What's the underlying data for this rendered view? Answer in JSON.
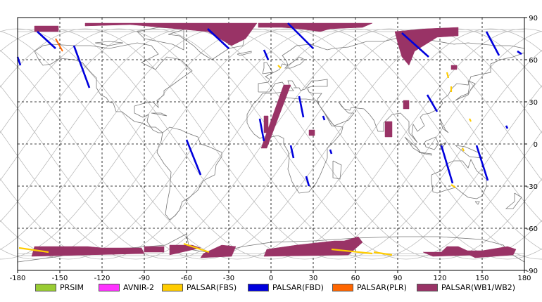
{
  "axes": {
    "x_ticks": [
      -180,
      -150,
      -120,
      -90,
      -60,
      -30,
      0,
      30,
      60,
      90,
      120,
      150,
      180
    ],
    "y_ticks": [
      90,
      60,
      30,
      0,
      -30,
      -60,
      -90
    ],
    "lon_range": [
      -180,
      180
    ],
    "lat_range": [
      -90,
      90
    ],
    "grid": "dashed"
  },
  "legend": {
    "position": "bottom",
    "items": [
      {
        "label": "PRSIM",
        "color": "#99cc33"
      },
      {
        "label": "AVNIR-2",
        "color": "#ff33ff"
      },
      {
        "label": "PALSAR(FBS)",
        "color": "#ffcc00"
      },
      {
        "label": "PALSAR(FBD)",
        "color": "#0000dd"
      },
      {
        "label": "PALSAR(PLR)",
        "color": "#ff6600"
      },
      {
        "label": "PALSAR(WB1/WB2)",
        "color": "#993366"
      }
    ]
  },
  "colors": {
    "fbs": "#ffcc00",
    "fbd": "#0000dd",
    "plr": "#ff6600",
    "wb": "#993366",
    "orbit": "#bbbbbb",
    "coast": "#777777"
  },
  "coverage": {
    "wb_polygons": [
      [
        [
          -168,
          84
        ],
        [
          -151,
          84
        ],
        [
          -151,
          80
        ],
        [
          -168,
          80
        ]
      ],
      [
        [
          -132,
          86
        ],
        [
          -10,
          86
        ],
        [
          -18,
          75
        ],
        [
          -28,
          70
        ],
        [
          -45,
          80
        ],
        [
          -100,
          85
        ],
        [
          -132,
          84
        ]
      ],
      [
        [
          -9,
          86
        ],
        [
          8,
          86
        ],
        [
          8,
          83
        ],
        [
          -9,
          83
        ]
      ],
      [
        [
          8,
          86
        ],
        [
          72,
          86
        ],
        [
          65,
          83
        ],
        [
          42,
          82
        ],
        [
          35,
          80
        ],
        [
          20,
          82
        ],
        [
          8,
          83
        ]
      ],
      [
        [
          88,
          80
        ],
        [
          110,
          82
        ],
        [
          133,
          83
        ],
        [
          133,
          77
        ],
        [
          118,
          76
        ],
        [
          102,
          66
        ],
        [
          98,
          56
        ],
        [
          93,
          62
        ],
        [
          90,
          72
        ]
      ],
      [
        [
          128,
          56
        ],
        [
          132,
          56
        ],
        [
          132,
          53
        ],
        [
          128,
          53
        ]
      ],
      [
        [
          9,
          42
        ],
        [
          14,
          42
        ],
        [
          -3,
          -3
        ],
        [
          -7,
          -3
        ]
      ],
      [
        [
          -5,
          20
        ],
        [
          -2,
          20
        ],
        [
          -2,
          8
        ],
        [
          -5,
          8
        ]
      ],
      [
        [
          27,
          10
        ],
        [
          31,
          10
        ],
        [
          31,
          6
        ],
        [
          27,
          6
        ]
      ],
      [
        [
          81,
          16
        ],
        [
          86,
          16
        ],
        [
          86,
          5
        ],
        [
          81,
          5
        ]
      ],
      [
        [
          94,
          31
        ],
        [
          98,
          31
        ],
        [
          98,
          25
        ],
        [
          94,
          25
        ]
      ],
      [
        [
          -168,
          -73
        ],
        [
          -130,
          -73
        ],
        [
          -120,
          -74
        ],
        [
          -92,
          -74
        ],
        [
          -90,
          -78
        ],
        [
          -170,
          -80
        ]
      ],
      [
        [
          -90,
          -73
        ],
        [
          -76,
          -73
        ],
        [
          -76,
          -77
        ],
        [
          -90,
          -77
        ]
      ],
      [
        [
          -72,
          -72
        ],
        [
          -56,
          -72
        ],
        [
          -50,
          -74
        ],
        [
          -72,
          -79
        ]
      ],
      [
        [
          -48,
          -78
        ],
        [
          -35,
          -72
        ],
        [
          -25,
          -73
        ],
        [
          -28,
          -80
        ],
        [
          -50,
          -81
        ]
      ],
      [
        [
          -3,
          -75
        ],
        [
          18,
          -72
        ],
        [
          45,
          -69
        ],
        [
          52,
          -69
        ],
        [
          62,
          -66
        ],
        [
          65,
          -70
        ],
        [
          55,
          -79
        ],
        [
          -5,
          -80
        ]
      ],
      [
        [
          108,
          -77
        ],
        [
          121,
          -77
        ],
        [
          125,
          -73
        ],
        [
          133,
          -73
        ],
        [
          146,
          -79
        ],
        [
          115,
          -80
        ]
      ],
      [
        [
          135,
          -76
        ],
        [
          150,
          -76
        ],
        [
          168,
          -73
        ],
        [
          174,
          -75
        ],
        [
          172,
          -79
        ],
        [
          145,
          -81
        ]
      ]
    ],
    "fbd_lines": [
      [
        [
          -180,
          62
        ],
        [
          -178,
          56
        ]
      ],
      [
        [
          -166,
          80
        ],
        [
          -153,
          68
        ]
      ],
      [
        [
          -140,
          70
        ],
        [
          -129,
          40
        ]
      ],
      [
        [
          -60,
          3
        ],
        [
          -50,
          -22
        ]
      ],
      [
        [
          -45,
          82
        ],
        [
          -30,
          68
        ]
      ],
      [
        [
          -5,
          67
        ],
        [
          -2,
          60
        ]
      ],
      [
        [
          12,
          86
        ],
        [
          30,
          68
        ]
      ],
      [
        [
          -8,
          18
        ],
        [
          -5,
          2
        ]
      ],
      [
        [
          20,
          34
        ],
        [
          23,
          19
        ]
      ],
      [
        [
          14,
          -1
        ],
        [
          16,
          -10
        ]
      ],
      [
        [
          25,
          -23
        ],
        [
          27,
          -30
        ]
      ],
      [
        [
          37,
          20
        ],
        [
          38,
          17
        ]
      ],
      [
        [
          42,
          -4
        ],
        [
          43,
          -7
        ]
      ],
      [
        [
          93,
          79
        ],
        [
          112,
          62
        ]
      ],
      [
        [
          111,
          35
        ],
        [
          118,
          23
        ]
      ],
      [
        [
          121,
          -1
        ],
        [
          129,
          -28
        ]
      ],
      [
        [
          153,
          80
        ],
        [
          162,
          63
        ]
      ],
      [
        [
          146,
          -1
        ],
        [
          154,
          -26
        ]
      ],
      [
        [
          175,
          66
        ],
        [
          178,
          64
        ]
      ],
      [
        [
          167,
          13
        ],
        [
          168,
          11
        ]
      ]
    ],
    "plr_lines": [
      [
        [
          -153,
          75
        ],
        [
          -148,
          66
        ]
      ]
    ],
    "fbs_lines": [
      [
        [
          -179,
          -74
        ],
        [
          -158,
          -77
        ]
      ],
      [
        [
          -62,
          -71
        ],
        [
          -44,
          -77
        ]
      ],
      [
        [
          43,
          -75
        ],
        [
          72,
          -78
        ]
      ],
      [
        [
          73,
          -77
        ],
        [
          86,
          -79
        ]
      ],
      [
        [
          125,
          51
        ],
        [
          126,
          47
        ]
      ],
      [
        [
          128,
          41
        ],
        [
          128,
          37
        ]
      ],
      [
        [
          136,
          -3
        ],
        [
          137,
          -5
        ]
      ],
      [
        [
          141,
          18
        ],
        [
          142,
          16
        ]
      ],
      [
        [
          128,
          -29
        ],
        [
          131,
          -31
        ]
      ],
      [
        [
          5,
          56
        ],
        [
          7,
          54
        ]
      ]
    ]
  }
}
